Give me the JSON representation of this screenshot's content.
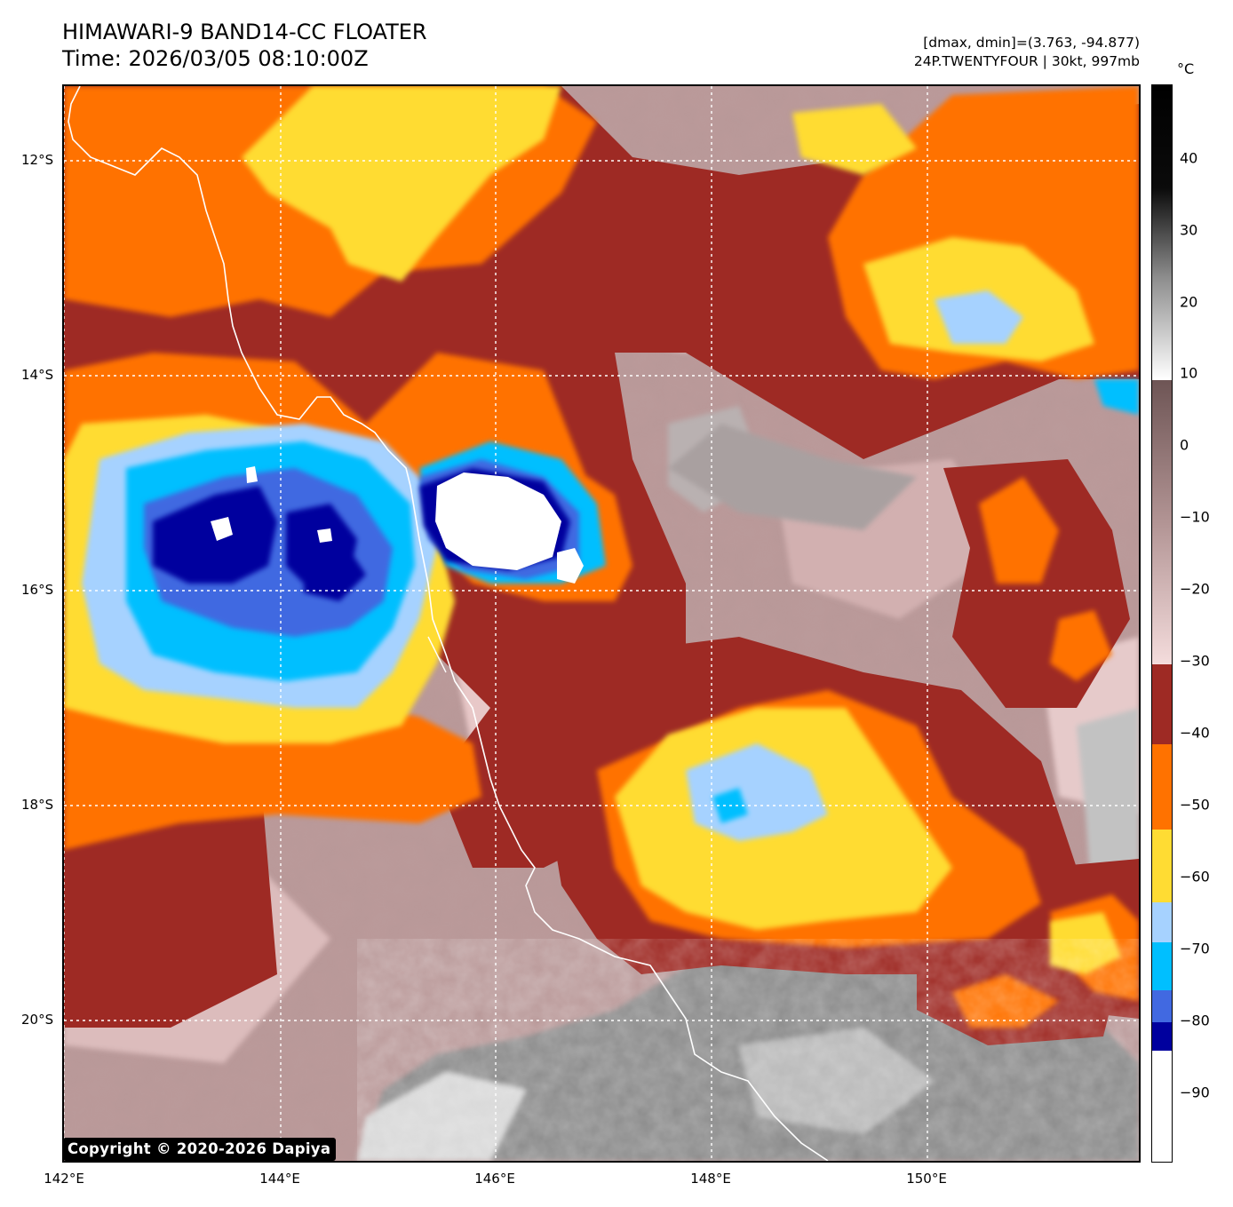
{
  "header": {
    "title_line1": "HIMAWARI-9 BAND14-CC FLOATER",
    "title_line2": "Time: 2026/03/05 08:10:00Z",
    "range_text": "[dmax, dmin]=(3.763, -94.877)",
    "storm_text": "24P.TWENTYFOUR | 30kt, 997mb"
  },
  "map": {
    "lat_labels": [
      "12°S",
      "14°S",
      "16°S",
      "18°S",
      "20°S"
    ],
    "lon_labels": [
      "142°E",
      "144°E",
      "146°E",
      "148°E",
      "150°E"
    ],
    "gridlines": "dotted white",
    "coastline_color": "#ffffff"
  },
  "colorbar": {
    "unit": "°C",
    "tick_labels": [
      "40",
      "30",
      "20",
      "10",
      "0",
      "−10",
      "−20",
      "−30",
      "−40",
      "−50",
      "−60",
      "−70",
      "−80",
      "−90"
    ],
    "range_c": [
      -100,
      50
    ],
    "color_bands": [
      {
        "from": 10,
        "to": 50,
        "style": "grayscale white-to-black"
      },
      {
        "from": -31,
        "to": 10,
        "style": "brown-to-pink gradient"
      },
      {
        "from": -42,
        "to": -31,
        "color": "#9e2a24"
      },
      {
        "from": -54,
        "to": -42,
        "color": "#ff7200"
      },
      {
        "from": -64,
        "to": -54,
        "color": "#ffdc33"
      },
      {
        "from": -69,
        "to": -64,
        "color": "#a6d2ff"
      },
      {
        "from": -75,
        "to": -69,
        "color": "#00bfff"
      },
      {
        "from": -80,
        "to": -75,
        "color": "#4169e1"
      },
      {
        "from": -84,
        "to": -80,
        "color": "#00009e"
      },
      {
        "from": -100,
        "to": -84,
        "color": "#ffffff"
      }
    ]
  },
  "footer": {
    "copyright": "Copyright © 2020-2026 Dapiya"
  }
}
